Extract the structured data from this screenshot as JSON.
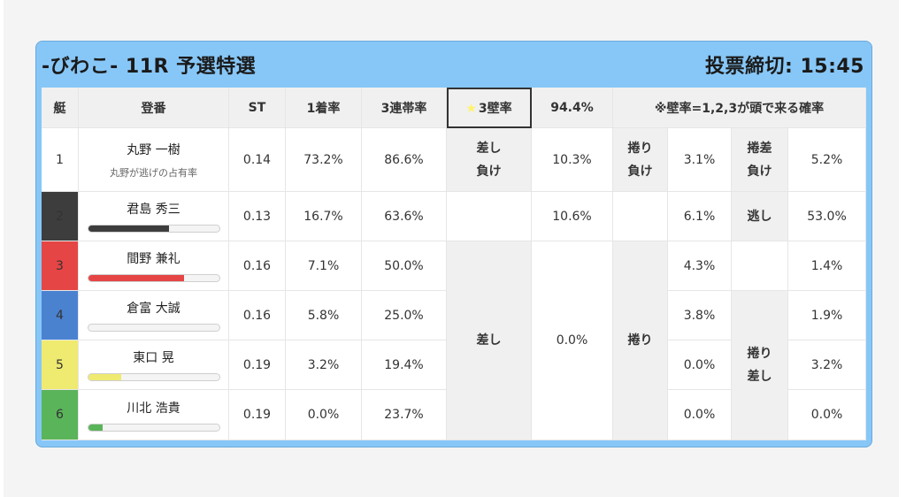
{
  "header": {
    "title": "-びわこ- 11R 予選特選",
    "deadline": "投票締切: 15:45"
  },
  "columns": {
    "boat": "艇",
    "register": "登番",
    "st": "ST",
    "first": "1着率",
    "trio": "3連帯率",
    "wall_label": "3壁率",
    "wall_value": "94.4%",
    "note": "※壁率=1,2,3が頭で来る確率"
  },
  "colors": {
    "header_bg": "#87c7f7",
    "wall_cell": "#f0a82c",
    "highlight_rate": "#e53935",
    "boat_colors": [
      "#ffffff",
      "#3d3d3d",
      "#e64545",
      "#4a82d0",
      "#efea70",
      "#5ab45a"
    ]
  },
  "racers": [
    {
      "no": "1",
      "name": "丸野 一樹",
      "sub": "丸野が逃げの占有率",
      "st": "0.14",
      "first": "73.2%",
      "trio": "86.6%"
    },
    {
      "no": "2",
      "name": "君島 秀三",
      "st": "0.13",
      "first": "16.7%",
      "trio": "63.6%",
      "bar": 0.62
    },
    {
      "no": "3",
      "name": "間野 兼礼",
      "st": "0.16",
      "first": "7.1%",
      "trio": "50.0%",
      "bar": 0.73
    },
    {
      "no": "4",
      "name": "倉富 大誠",
      "st": "0.16",
      "first": "5.8%",
      "trio": "25.0%",
      "bar": 0.0
    },
    {
      "no": "5",
      "name": "東口 晃",
      "st": "0.19",
      "first": "3.2%",
      "trio": "19.4%",
      "bar": 0.25
    },
    {
      "no": "6",
      "name": "川北 浩貴",
      "st": "0.19",
      "first": "0.0%",
      "trio": "23.7%",
      "bar": 0.11
    }
  ],
  "patterns": {
    "row1": {
      "sashi_make": "差し\n負け",
      "sashi_make_val": "10.3%",
      "makuri_make": "捲り\n負け",
      "makuri_make_val": "3.1%",
      "makurisashi_make": "捲差\n負け",
      "makurisashi_make_val": "5.2%"
    },
    "sashi": "差し",
    "sashi_vals": [
      "10.6%",
      "0.0%"
    ],
    "makuri": "捲り",
    "makuri_vals": [
      "6.1%",
      "4.3%",
      "3.8%",
      "0.0%",
      "0.0%"
    ],
    "nige": "逃し",
    "nige_val": "53.0%",
    "makurisashi": "捲り\n差し",
    "makurisashi_vals": [
      "1.4%",
      "1.9%",
      "3.2%",
      "0.0%"
    ]
  }
}
